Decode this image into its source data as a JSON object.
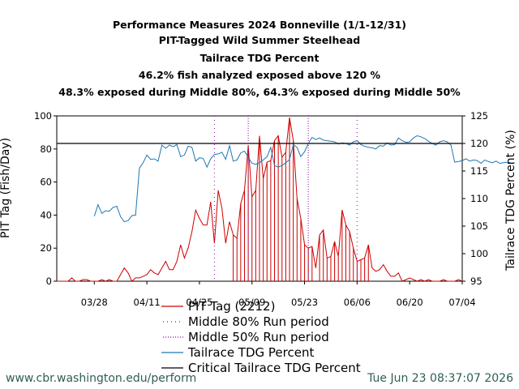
{
  "titles": [
    "Performance Measures 2024 Bonneville (1/1-12/31)",
    "PIT-Tagged Wild Summer Steelhead",
    "Tailrace TDG Percent",
    "46.2% fish analyzed exposed above 120 %",
    "48.3% exposed during Middle 80%, 64.3% exposed during Middle 50%"
  ],
  "footer": {
    "url": "www.cbr.washington.edu/perform",
    "timestamp": "Tue Jun 23 08:37:07 2026"
  },
  "chart_data": {
    "type": "line",
    "ylabel": "PIT Tag (Fish/Day)",
    "y2label": "Tailrace TDG Percent (%)",
    "ylim": [
      0,
      100
    ],
    "y2lim": [
      95,
      125
    ],
    "xlim": [
      "2024-03-18",
      "2024-07-04"
    ],
    "x_ticks": [
      "03/28",
      "04/11",
      "04/25",
      "05/09",
      "05/23",
      "06/06",
      "06/20",
      "07/04"
    ],
    "x_tick_dates": [
      "2024-03-28",
      "2024-04-11",
      "2024-04-25",
      "2024-05-09",
      "2024-05-23",
      "2024-06-06",
      "2024-06-20",
      "2024-07-04"
    ],
    "y_ticks": [
      0,
      20,
      40,
      60,
      80,
      100
    ],
    "y2_ticks": [
      95,
      100,
      105,
      110,
      115,
      120,
      125
    ],
    "legend_position": "bottom",
    "legend": [
      {
        "label": "PIT Tag (2212)",
        "color": "#cc0000",
        "style": "solid"
      },
      {
        "label": "Middle 80% Run period",
        "color": "#9b30b0",
        "style": "dotted-sparse"
      },
      {
        "label": "Middle 50% Run period",
        "color": "#9b30b0",
        "style": "dotted"
      },
      {
        "label": "Tailrace TDG Percent",
        "color": "#1f77b4",
        "style": "solid"
      },
      {
        "label": "Critical Tailrace TDG Percent",
        "color": "#000000",
        "style": "solid"
      }
    ],
    "critical_tdg": 120,
    "middle80_dates": [
      "2024-04-29",
      "2024-06-06"
    ],
    "middle50_dates": [
      "2024-05-08",
      "2024-05-24"
    ],
    "pit_series": {
      "name": "PIT Tag (2212)",
      "color": "#cc0000",
      "start": "2024-03-18",
      "values": [
        0,
        0,
        0,
        0,
        2,
        0,
        0,
        1,
        1,
        0,
        0,
        0,
        1,
        0,
        1,
        0,
        0,
        4,
        8,
        5,
        0,
        2,
        2,
        3,
        4,
        7,
        5,
        4,
        8,
        12,
        7,
        7,
        12,
        22,
        14,
        20,
        30,
        43,
        38,
        34,
        34,
        48,
        23,
        55,
        44,
        23,
        36,
        28,
        26,
        47,
        55,
        82,
        51,
        55,
        88,
        62,
        72,
        73,
        85,
        88,
        75,
        78,
        99,
        85,
        50,
        38,
        22,
        20,
        21,
        8,
        28,
        31,
        14,
        15,
        24,
        15,
        43,
        34,
        30,
        20,
        12,
        13,
        14,
        22,
        8,
        6,
        7,
        10,
        6,
        3,
        3,
        5,
        0,
        1,
        2,
        1,
        0,
        1,
        0,
        1,
        0,
        0,
        0,
        1,
        0,
        0,
        0,
        1,
        0
      ]
    },
    "tdg_series": {
      "name": "Tailrace TDG Percent",
      "color": "#1f77b4",
      "start": "2024-03-18",
      "values": [
        null,
        null,
        null,
        null,
        null,
        null,
        null,
        null,
        null,
        null,
        106.8,
        108.9,
        107.3,
        107.8,
        107.7,
        108.4,
        108.6,
        106.7,
        105.8,
        106.0,
        106.9,
        107.0,
        115.5,
        116.5,
        117.9,
        117.1,
        117.2,
        116.8,
        119.7,
        119.1,
        119.7,
        119.4,
        119.8,
        117.6,
        117.9,
        119.5,
        119.3,
        116.8,
        117.4,
        117.3,
        115.7,
        117.2,
        118.0,
        118.1,
        118.4,
        117.1,
        119.6,
        116.8,
        117.0,
        118.3,
        118.6,
        117.5,
        116.4,
        116.2,
        116.5,
        117.0,
        117.6,
        119.3,
        116.0,
        115.7,
        116.0,
        116.5,
        117.1,
        119.8,
        119.3,
        117.6,
        118.5,
        120.0,
        121.1,
        120.7,
        121.0,
        120.6,
        120.5,
        120.4,
        120.3,
        119.9,
        120.1,
        120.0,
        119.7,
        120.3,
        120.5,
        119.8,
        119.5,
        119.3,
        119.2,
        119.0,
        119.6,
        119.5,
        120.1,
        119.7,
        119.8,
        121.0,
        120.5,
        120.2,
        120.3,
        121.0,
        121.4,
        121.2,
        120.9,
        120.4,
        120.0,
        119.7,
        120.3,
        120.5,
        120.3,
        119.7,
        116.6,
        116.7,
        116.9,
        117.2,
        116.8,
        117.0,
        116.9,
        116.4,
        117.0,
        116.7,
        116.5,
        116.8,
        116.4,
        116.5,
        116.6,
        116.4,
        116.5
      ]
    }
  }
}
